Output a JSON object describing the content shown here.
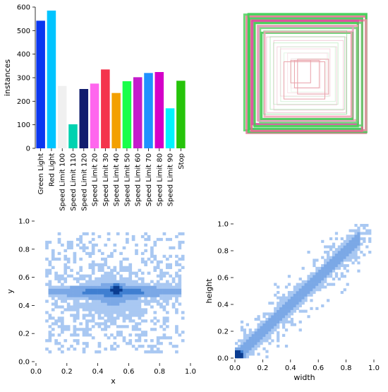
{
  "chart_data": [
    {
      "type": "bar",
      "ylabel": "instances",
      "xlabel": "",
      "ylim": [
        0,
        600
      ],
      "yticks": [
        "0",
        "100",
        "200",
        "300",
        "400",
        "500",
        "600"
      ],
      "categories": [
        "Green Light",
        "Red Light",
        "Speed Limit 100",
        "Speed Limit 110",
        "Speed Limit 120",
        "Speed Limit 20",
        "Speed Limit 30",
        "Speed Limit 40",
        "Speed Limit 50",
        "Speed Limit 60",
        "Speed Limit 70",
        "Speed Limit 80",
        "Speed Limit 90",
        "Stop"
      ],
      "values": [
        542,
        585,
        265,
        102,
        252,
        275,
        335,
        235,
        285,
        302,
        320,
        324,
        170,
        287
      ],
      "colors": [
        "#0a37f0",
        "#00c4ff",
        "#f0f0f0",
        "#00d2b0",
        "#111c6e",
        "#ff66ee",
        "#f4344c",
        "#f3a000",
        "#1aff4a",
        "#c41ccc",
        "#1f90ff",
        "#d400c8",
        "#00f4ff",
        "#26c40a"
      ],
      "grid": false
    },
    {
      "type": "overlay_boxes",
      "description_free": true,
      "box_sizes": [
        0.98,
        0.96,
        0.95,
        0.93,
        0.91,
        0.89,
        0.87,
        0.85,
        0.83,
        0.8,
        0.78,
        0.76,
        0.73,
        0.7,
        0.67,
        0.64,
        0.6,
        0.56,
        0.52,
        0.48,
        0.44,
        0.4,
        0.36,
        0.32,
        0.28,
        0.24
      ],
      "box_colors": [
        "#4cd15c",
        "#e96a8f",
        "#3fcf57",
        "#ef8fa8",
        "#2dc94d",
        "#e86590",
        "#5ad36a",
        "#d84da0",
        "#44cc52",
        "#f09db0",
        "#62d36f",
        "#e2a0c0",
        "#3cc94e",
        "#f2a1b6",
        "#7fd98a",
        "#e7b2c5",
        "#9ee3a6",
        "#eab6c8",
        "#b7e9bc",
        "#f0c0d0",
        "#c9eecd",
        "#f4cad6",
        "#d9f2dc",
        "#f7d6df",
        "#e2f5e4",
        "#f9dde5"
      ]
    },
    {
      "type": "heatmap",
      "xlabel": "x",
      "ylabel": "y",
      "xlim": [
        0,
        1
      ],
      "ylim": [
        0,
        1
      ],
      "xticks": [
        "0.0",
        "0.2",
        "0.4",
        "0.6",
        "0.8",
        "1.0"
      ],
      "yticks": [
        "0.0",
        "0.2",
        "0.4",
        "0.6",
        "0.8",
        "1.0"
      ],
      "peak": [
        0.52,
        0.52
      ]
    },
    {
      "type": "heatmap",
      "xlabel": "width",
      "ylabel": "height",
      "xlim": [
        0,
        1
      ],
      "ylim": [
        0,
        1
      ],
      "xticks": [
        "0.0",
        "0.2",
        "0.4",
        "0.6",
        "0.8",
        "1.0"
      ],
      "yticks": [
        "0.0",
        "0.2",
        "0.4",
        "0.6",
        "0.8",
        "1.0"
      ],
      "peak": [
        0.02,
        0.02
      ]
    }
  ]
}
